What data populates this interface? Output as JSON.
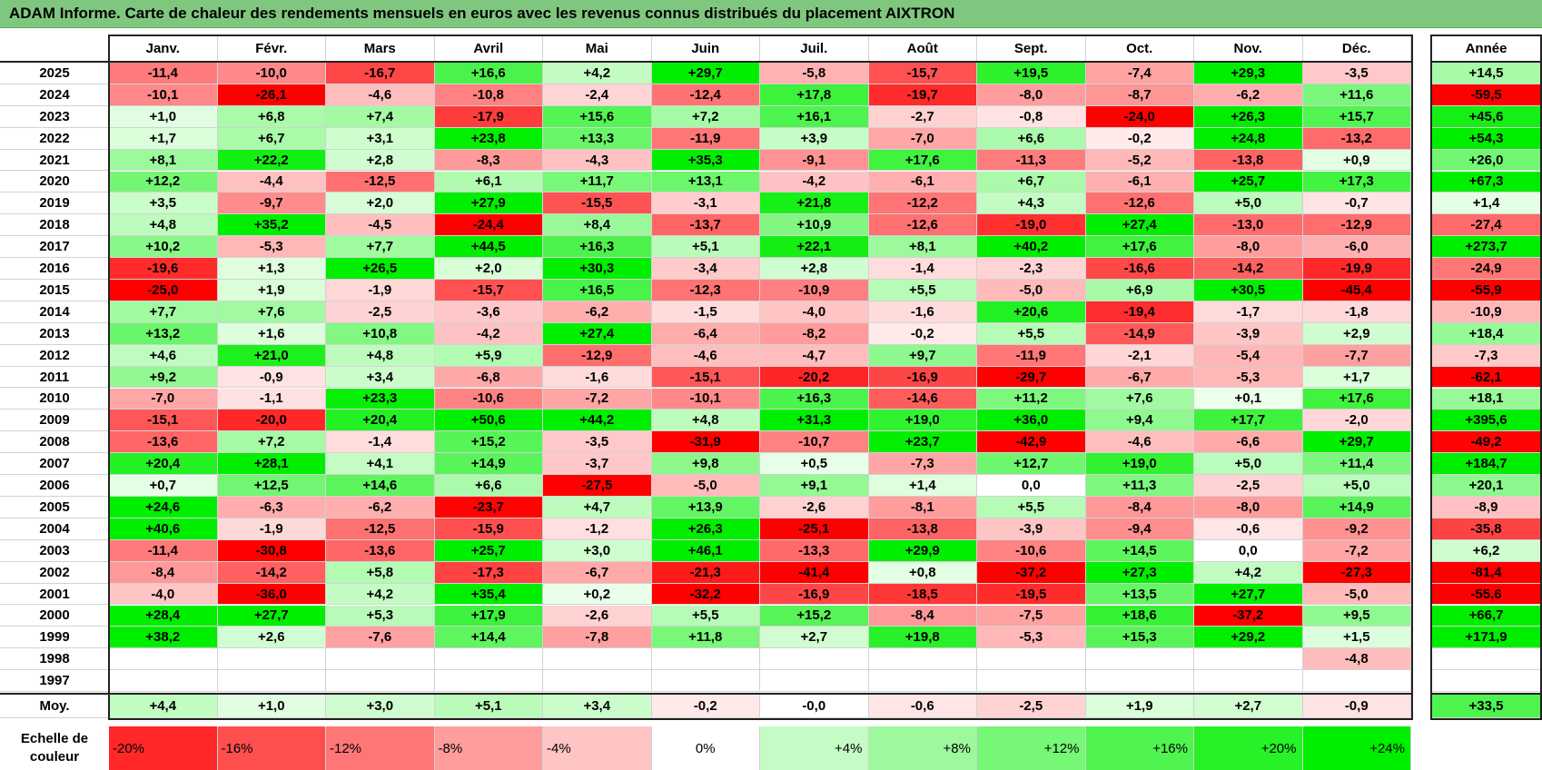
{
  "title": "ADAM Informe. Carte de chaleur des rendements mensuels en euros avec les revenus connus distribués du placement AIXTRON",
  "chart_data": {
    "type": "heatmap",
    "title": "ADAM Informe. Carte de chaleur des rendements mensuels en euros avec les revenus connus distribués du placement AIXTRON",
    "months": [
      "Janv.",
      "Févr.",
      "Mars",
      "Avril",
      "Mai",
      "Juin",
      "Juil.",
      "Août",
      "Sept.",
      "Oct.",
      "Nov.",
      "Déc."
    ],
    "annual_header": "Année",
    "rows": [
      {
        "year": "2025",
        "values": [
          "-11,4",
          "-10,0",
          "-16,7",
          "+16,6",
          "+4,2",
          "+29,7",
          "-5,8",
          "-15,7",
          "+19,5",
          "-7,4",
          "+29,3",
          "-3,5"
        ],
        "annual": "+14,5"
      },
      {
        "year": "2024",
        "values": [
          "-10,1",
          "-26,1",
          "-4,6",
          "-10,8",
          "-2,4",
          "-12,4",
          "+17,8",
          "-19,7",
          "-8,0",
          "-8,7",
          "-6,2",
          "+11,6"
        ],
        "annual": "-59,5"
      },
      {
        "year": "2023",
        "values": [
          "+1,0",
          "+6,8",
          "+7,4",
          "-17,9",
          "+15,6",
          "+7,2",
          "+16,1",
          "-2,7",
          "-0,8",
          "-24,0",
          "+26,3",
          "+15,7"
        ],
        "annual": "+45,6"
      },
      {
        "year": "2022",
        "values": [
          "+1,7",
          "+6,7",
          "+3,1",
          "+23,8",
          "+13,3",
          "-11,9",
          "+3,9",
          "-7,0",
          "+6,6",
          "-0,2",
          "+24,8",
          "-13,2"
        ],
        "annual": "+54,3"
      },
      {
        "year": "2021",
        "values": [
          "+8,1",
          "+22,2",
          "+2,8",
          "-8,3",
          "-4,3",
          "+35,3",
          "-9,1",
          "+17,6",
          "-11,3",
          "-5,2",
          "-13,8",
          "+0,9"
        ],
        "annual": "+26,0"
      },
      {
        "year": "2020",
        "values": [
          "+12,2",
          "-4,4",
          "-12,5",
          "+6,1",
          "+11,7",
          "+13,1",
          "-4,2",
          "-6,1",
          "+6,7",
          "-6,1",
          "+25,7",
          "+17,3"
        ],
        "annual": "+67,3"
      },
      {
        "year": "2019",
        "values": [
          "+3,5",
          "-9,7",
          "+2,0",
          "+27,9",
          "-15,5",
          "-3,1",
          "+21,8",
          "-12,2",
          "+4,3",
          "-12,6",
          "+5,0",
          "-0,7"
        ],
        "annual": "+1,4"
      },
      {
        "year": "2018",
        "values": [
          "+4,8",
          "+35,2",
          "-4,5",
          "-24,4",
          "+8,4",
          "-13,7",
          "+10,9",
          "-12,6",
          "-19,0",
          "+27,4",
          "-13,0",
          "-12,9"
        ],
        "annual": "-27,4"
      },
      {
        "year": "2017",
        "values": [
          "+10,2",
          "-5,3",
          "+7,7",
          "+44,5",
          "+16,3",
          "+5,1",
          "+22,1",
          "+8,1",
          "+40,2",
          "+17,6",
          "-8,0",
          "-6,0"
        ],
        "annual": "+273,7"
      },
      {
        "year": "2016",
        "values": [
          "-19,6",
          "+1,3",
          "+26,5",
          "+2,0",
          "+30,3",
          "-3,4",
          "+2,8",
          "-1,4",
          "-2,3",
          "-16,6",
          "-14,2",
          "-19,9"
        ],
        "annual": "-24,9"
      },
      {
        "year": "2015",
        "values": [
          "-25,0",
          "+1,9",
          "-1,9",
          "-15,7",
          "+16,5",
          "-12,3",
          "-10,9",
          "+5,5",
          "-5,0",
          "+6,9",
          "+30,5",
          "-45,4"
        ],
        "annual": "-55,9"
      },
      {
        "year": "2014",
        "values": [
          "+7,7",
          "+7,6",
          "-2,5",
          "-3,6",
          "-6,2",
          "-1,5",
          "-4,0",
          "-1,6",
          "+20,6",
          "-19,4",
          "-1,7",
          "-1,8"
        ],
        "annual": "-10,9"
      },
      {
        "year": "2013",
        "values": [
          "+13,2",
          "+1,6",
          "+10,8",
          "-4,2",
          "+27,4",
          "-6,4",
          "-8,2",
          "-0,2",
          "+5,5",
          "-14,9",
          "-3,9",
          "+2,9"
        ],
        "annual": "+18,4"
      },
      {
        "year": "2012",
        "values": [
          "+4,6",
          "+21,0",
          "+4,8",
          "+5,9",
          "-12,9",
          "-4,6",
          "-4,7",
          "+9,7",
          "-11,9",
          "-2,1",
          "-5,4",
          "-7,7"
        ],
        "annual": "-7,3"
      },
      {
        "year": "2011",
        "values": [
          "+9,2",
          "-0,9",
          "+3,4",
          "-6,8",
          "-1,6",
          "-15,1",
          "-20,2",
          "-16,9",
          "-29,7",
          "-6,7",
          "-5,3",
          "+1,7"
        ],
        "annual": "-62,1"
      },
      {
        "year": "2010",
        "values": [
          "-7,0",
          "-1,1",
          "+23,3",
          "-10,6",
          "-7,2",
          "-10,1",
          "+16,3",
          "-14,6",
          "+11,2",
          "+7,6",
          "+0,1",
          "+17,6"
        ],
        "annual": "+18,1"
      },
      {
        "year": "2009",
        "values": [
          "-15,1",
          "-20,0",
          "+20,4",
          "+50,6",
          "+44,2",
          "+4,8",
          "+31,3",
          "+19,0",
          "+36,0",
          "+9,4",
          "+17,7",
          "-2,0"
        ],
        "annual": "+395,6"
      },
      {
        "year": "2008",
        "values": [
          "-13,6",
          "+7,2",
          "-1,4",
          "+15,2",
          "-3,5",
          "-31,9",
          "-10,7",
          "+23,7",
          "-42,9",
          "-4,6",
          "-6,6",
          "+29,7"
        ],
        "annual": "-49,2"
      },
      {
        "year": "2007",
        "values": [
          "+20,4",
          "+28,1",
          "+4,1",
          "+14,9",
          "-3,7",
          "+9,8",
          "+0,5",
          "-7,3",
          "+12,7",
          "+19,0",
          "+5,0",
          "+11,4"
        ],
        "annual": "+184,7"
      },
      {
        "year": "2006",
        "values": [
          "+0,7",
          "+12,5",
          "+14,6",
          "+6,6",
          "-27,5",
          "-5,0",
          "+9,1",
          "+1,4",
          "0,0",
          "+11,3",
          "-2,5",
          "+5,0"
        ],
        "annual": "+20,1"
      },
      {
        "year": "2005",
        "values": [
          "+24,6",
          "-6,3",
          "-6,2",
          "-23,7",
          "+4,7",
          "+13,9",
          "-2,6",
          "-8,1",
          "+5,5",
          "-8,4",
          "-8,0",
          "+14,9"
        ],
        "annual": "-8,9"
      },
      {
        "year": "2004",
        "values": [
          "+40,6",
          "-1,9",
          "-12,5",
          "-15,9",
          "-1,2",
          "+26,3",
          "-25,1",
          "-13,8",
          "-3,9",
          "-9,4",
          "-0,6",
          "-9,2"
        ],
        "annual": "-35,8"
      },
      {
        "year": "2003",
        "values": [
          "-11,4",
          "-30,8",
          "-13,6",
          "+25,7",
          "+3,0",
          "+46,1",
          "-13,3",
          "+29,9",
          "-10,6",
          "+14,5",
          "0,0",
          "-7,2"
        ],
        "annual": "+6,2"
      },
      {
        "year": "2002",
        "values": [
          "-8,4",
          "-14,2",
          "+5,8",
          "-17,3",
          "-6,7",
          "-21,3",
          "-41,4",
          "+0,8",
          "-37,2",
          "+27,3",
          "+4,2",
          "-27,3"
        ],
        "annual": "-81,4"
      },
      {
        "year": "2001",
        "values": [
          "-4,0",
          "-36,0",
          "+4,2",
          "+35,4",
          "+0,2",
          "-32,2",
          "-16,9",
          "-18,5",
          "-19,5",
          "+13,5",
          "+27,7",
          "-5,0"
        ],
        "annual": "-55,6"
      },
      {
        "year": "2000",
        "values": [
          "+28,4",
          "+27,7",
          "+5,3",
          "+17,9",
          "-2,6",
          "+5,5",
          "+15,2",
          "-8,4",
          "-7,5",
          "+18,6",
          "-37,2",
          "+9,5"
        ],
        "annual": "+66,7"
      },
      {
        "year": "1999",
        "values": [
          "+38,2",
          "+2,6",
          "-7,6",
          "+14,4",
          "-7,8",
          "+11,8",
          "+2,7",
          "+19,8",
          "-5,3",
          "+15,3",
          "+29,2",
          "+1,5"
        ],
        "annual": "+171,9"
      },
      {
        "year": "1998",
        "values": [
          "",
          "",
          "",
          "",
          "",
          "",
          "",
          "",
          "",
          "",
          "",
          "-4,8"
        ],
        "annual": ""
      },
      {
        "year": "1997",
        "values": [
          "",
          "",
          "",
          "",
          "",
          "",
          "",
          "",
          "",
          "",
          "",
          ""
        ],
        "annual": ""
      }
    ],
    "average": {
      "label": "Moy.",
      "values": [
        "+4,4",
        "+1,0",
        "+3,0",
        "+5,1",
        "+3,4",
        "-0,2",
        "-0,0",
        "-0,6",
        "-2,5",
        "+1,9",
        "+2,7",
        "-0,9"
      ],
      "annual": "+33,5"
    },
    "scale": {
      "label_line1": "Echelle de",
      "label_line2": "couleur",
      "steps": [
        "-20%",
        "-16%",
        "-12%",
        "-8%",
        "-4%",
        "0%",
        "+4%",
        "+8%",
        "+12%",
        "+16%",
        "+20%",
        "+24%"
      ]
    },
    "colors": {
      "negative_max": "#ff0000",
      "positive_max": "#00ee00",
      "neutral": "#ffffff"
    }
  }
}
